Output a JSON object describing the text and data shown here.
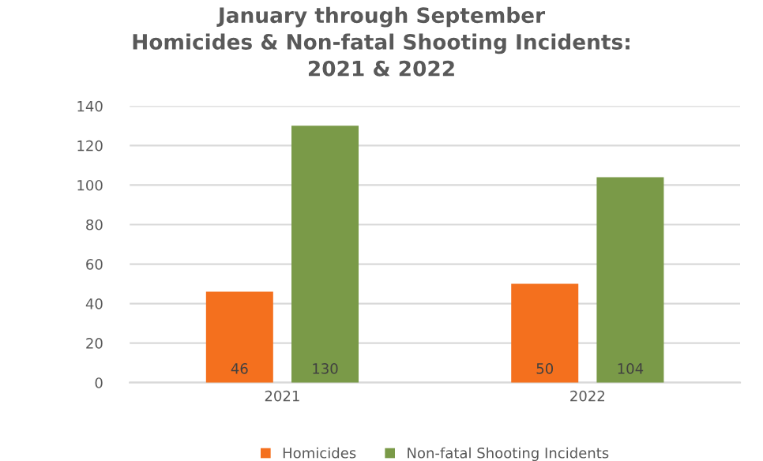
{
  "chart_data": {
    "type": "bar",
    "title": "January through September\nHomicides & Non-fatal Shooting Incidents:\n2021 & 2022",
    "categories": [
      "2021",
      "2022"
    ],
    "series": [
      {
        "name": "Homicides",
        "color": "#f4701e",
        "values": [
          46,
          50
        ]
      },
      {
        "name": "Non-fatal Shooting Incidents",
        "color": "#7a9a48",
        "values": [
          130,
          104
        ]
      }
    ],
    "ylim": [
      0,
      140
    ],
    "yticks": [
      0,
      20,
      40,
      60,
      80,
      100,
      120,
      140
    ],
    "grid": "y",
    "legend": "bottom",
    "data_labels": true
  }
}
